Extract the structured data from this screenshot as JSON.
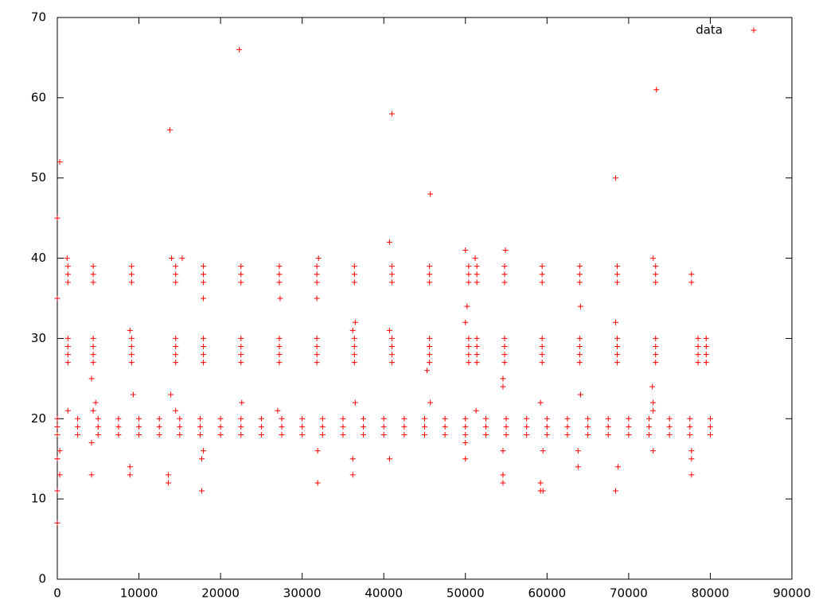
{
  "chart_data": {
    "type": "scatter",
    "xlim": [
      0,
      90000
    ],
    "ylim": [
      0,
      70
    ],
    "xticks": [
      0,
      10000,
      20000,
      30000,
      40000,
      50000,
      60000,
      70000,
      80000,
      90000
    ],
    "yticks": [
      0,
      10,
      20,
      30,
      40,
      50,
      60,
      70
    ],
    "legend": "upper-right",
    "series": [
      {
        "name": "data",
        "color": "#ff0000",
        "x": [
          0,
          0,
          0,
          2500,
          2500,
          2500,
          5000,
          5000,
          5000,
          7500,
          7500,
          7500,
          10000,
          10000,
          10000,
          12500,
          12500,
          12500,
          15000,
          15000,
          15000,
          17500,
          17500,
          17500,
          20000,
          20000,
          20000,
          22500,
          22500,
          22500,
          25000,
          25000,
          25000,
          27500,
          27500,
          27500,
          30000,
          30000,
          30000,
          32500,
          32500,
          32500,
          35000,
          35000,
          35000,
          37500,
          37500,
          37500,
          40000,
          40000,
          40000,
          42500,
          42500,
          42500,
          45000,
          45000,
          45000,
          47500,
          47500,
          47500,
          50000,
          50000,
          50000,
          52500,
          52500,
          52500,
          55000,
          55000,
          55000,
          57500,
          57500,
          57500,
          60000,
          60000,
          60000,
          62500,
          62500,
          62500,
          65000,
          65000,
          65000,
          67500,
          67500,
          67500,
          70000,
          70000,
          70000,
          72500,
          72500,
          72500,
          75000,
          75000,
          75000,
          77500,
          77500,
          77500,
          80000,
          80000,
          80000,
          1300,
          1300,
          1300,
          1300,
          1300,
          1300,
          1300,
          4400,
          4400,
          4400,
          4400,
          4400,
          4400,
          4400,
          9100,
          9100,
          9100,
          9100,
          9100,
          9100,
          9100,
          14500,
          14500,
          14500,
          14500,
          14500,
          14500,
          14500,
          17900,
          17900,
          17900,
          17900,
          17900,
          17900,
          17900,
          22500,
          22500,
          22500,
          22500,
          22500,
          22500,
          22500,
          27200,
          27200,
          27200,
          27200,
          27200,
          27200,
          27200,
          31800,
          31800,
          31800,
          31800,
          31800,
          31800,
          31800,
          36400,
          36400,
          36400,
          36400,
          36400,
          36400,
          36400,
          41000,
          41000,
          41000,
          41000,
          41000,
          41000,
          41000,
          45600,
          45600,
          45600,
          45600,
          45600,
          45600,
          45600,
          50400,
          50400,
          50400,
          50400,
          50400,
          50400,
          50400,
          51400,
          51400,
          51400,
          51400,
          51400,
          51400,
          51400,
          54800,
          54800,
          54800,
          54800,
          54800,
          54800,
          54800,
          59400,
          59400,
          59400,
          59400,
          59400,
          59400,
          59400,
          64000,
          64000,
          64000,
          64000,
          64000,
          64000,
          64000,
          68600,
          68600,
          68600,
          68600,
          68600,
          68600,
          68600,
          73300,
          73300,
          73300,
          73300,
          73300,
          73300,
          73300,
          78500,
          78500,
          78500,
          78500,
          79500,
          79500,
          79500,
          79500,
          1300,
          4400,
          14500,
          27000,
          51300,
          73000,
          0,
          0,
          0,
          0,
          0,
          300,
          300,
          300,
          22300,
          13800,
          41000,
          73400,
          45700,
          68400,
          40700,
          50000,
          54900,
          51200,
          73000,
          32000,
          1200,
          14000,
          15300,
          17900,
          27300,
          31800,
          9300,
          13900,
          64100,
          4200,
          4200,
          4200,
          8900,
          8900,
          13600,
          13600,
          17700,
          17700,
          17900,
          31900,
          31900,
          36200,
          36200,
          40700,
          50000,
          50000,
          54600,
          54600,
          54600,
          59200,
          59200,
          59500,
          59500,
          63800,
          63800,
          68400,
          68700,
          73000,
          77700,
          77700,
          77700,
          72900,
          54600,
          54600,
          50200,
          64100,
          68400,
          50000,
          36500,
          40700,
          36200,
          8900,
          45300,
          45700,
          36500,
          22600,
          59200,
          73000,
          4700,
          77700,
          77700
        ],
        "values": [
          18,
          19,
          20,
          18,
          19,
          20,
          18,
          19,
          20,
          18,
          19,
          20,
          18,
          19,
          20,
          18,
          19,
          20,
          18,
          19,
          20,
          18,
          19,
          20,
          18,
          19,
          20,
          18,
          19,
          20,
          18,
          19,
          20,
          18,
          19,
          20,
          18,
          19,
          20,
          18,
          19,
          20,
          18,
          19,
          20,
          18,
          19,
          20,
          18,
          19,
          20,
          18,
          19,
          20,
          18,
          19,
          20,
          18,
          19,
          20,
          18,
          19,
          20,
          18,
          19,
          20,
          18,
          19,
          20,
          18,
          19,
          20,
          18,
          19,
          20,
          18,
          19,
          20,
          18,
          19,
          20,
          18,
          19,
          20,
          18,
          19,
          20,
          18,
          19,
          20,
          18,
          19,
          20,
          18,
          19,
          20,
          18,
          19,
          20,
          27,
          28,
          29,
          30,
          37,
          38,
          39,
          27,
          28,
          29,
          30,
          37,
          38,
          39,
          27,
          28,
          29,
          30,
          37,
          38,
          39,
          27,
          28,
          29,
          30,
          37,
          38,
          39,
          27,
          28,
          29,
          30,
          37,
          38,
          39,
          27,
          28,
          29,
          30,
          37,
          38,
          39,
          27,
          28,
          29,
          30,
          37,
          38,
          39,
          27,
          28,
          29,
          30,
          37,
          38,
          39,
          27,
          28,
          29,
          30,
          37,
          38,
          39,
          27,
          28,
          29,
          30,
          37,
          38,
          39,
          27,
          28,
          29,
          30,
          37,
          38,
          39,
          27,
          28,
          29,
          30,
          37,
          38,
          39,
          27,
          28,
          29,
          30,
          37,
          38,
          39,
          27,
          28,
          29,
          30,
          37,
          38,
          39,
          27,
          28,
          29,
          30,
          37,
          38,
          39,
          27,
          28,
          29,
          30,
          37,
          38,
          39,
          27,
          28,
          29,
          30,
          37,
          38,
          39,
          27,
          28,
          29,
          30,
          37,
          38,
          39,
          27,
          28,
          29,
          30,
          27,
          28,
          29,
          30,
          21,
          21,
          21,
          21,
          21,
          21,
          45,
          35,
          7,
          11,
          15,
          52,
          16,
          13,
          66,
          56,
          58,
          61,
          48,
          50,
          42,
          41,
          41,
          40,
          40,
          40,
          40,
          40,
          40,
          35,
          35,
          35,
          23,
          23,
          23,
          25,
          17,
          13,
          14,
          13,
          13,
          12,
          15,
          11,
          16,
          12,
          16,
          15,
          13,
          15,
          15,
          17,
          12,
          13,
          16,
          12,
          11,
          11,
          16,
          14,
          16,
          11,
          14,
          16,
          13,
          15,
          16,
          24,
          24,
          25,
          34,
          34,
          32,
          32,
          32,
          31,
          31,
          31,
          26,
          22,
          22,
          22,
          22,
          22,
          22,
          37,
          38
        ]
      }
    ]
  }
}
